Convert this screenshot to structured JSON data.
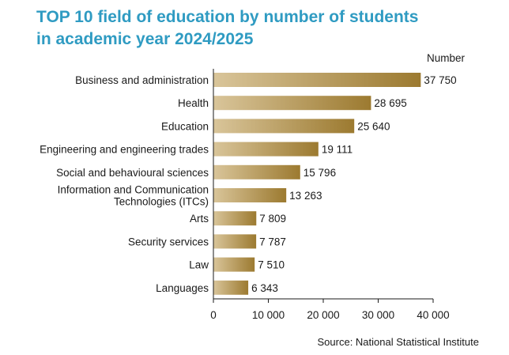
{
  "title_line1": "TOP 10 field of education by number of students",
  "title_line2": "in academic year 2024/2025",
  "source": "Source: National Statistical Institute",
  "chart_data": {
    "type": "bar",
    "orientation": "horizontal",
    "title": "TOP 10 field of education by number of students in academic year 2024/2025",
    "value_axis_label": "Number",
    "xlim": [
      0,
      40000
    ],
    "ticks": [
      0,
      10000,
      20000,
      30000,
      40000
    ],
    "tick_labels": [
      "0",
      "10 000",
      "20 000",
      "30 000",
      "40 000"
    ],
    "bar_color_start": "#d9c59a",
    "bar_color_end": "#9c7a30",
    "categories": [
      [
        "Business and administration"
      ],
      [
        "Health"
      ],
      [
        "Education"
      ],
      [
        "Engineering and engineering trades"
      ],
      [
        "Social and behavioural sciences"
      ],
      [
        "Information and Communication",
        "Technologies (ITCs)"
      ],
      [
        "Arts"
      ],
      [
        "Security services"
      ],
      [
        "Law"
      ],
      [
        "Languages"
      ]
    ],
    "values": [
      37750,
      28695,
      25640,
      19111,
      15796,
      13263,
      7809,
      7787,
      7510,
      6343
    ],
    "value_labels": [
      "37 750",
      "28 695",
      "25 640",
      "19 111",
      "15 796",
      "13 263",
      "7 809",
      "7 787",
      "7 510",
      "6 343"
    ]
  }
}
